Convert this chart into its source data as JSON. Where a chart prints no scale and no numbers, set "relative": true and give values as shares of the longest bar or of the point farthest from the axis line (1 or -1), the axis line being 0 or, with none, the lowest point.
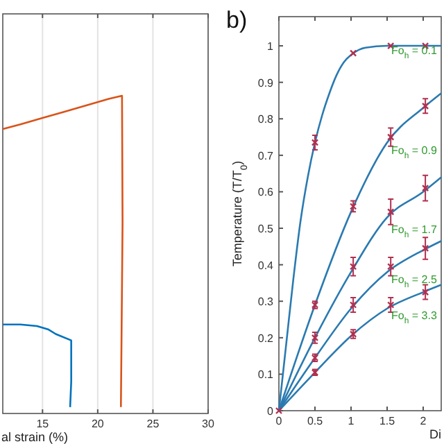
{
  "chart_data": [
    {
      "type": "line",
      "relative": true,
      "xlabel": "al strain (%)",
      "xlim": [
        11.4,
        30
      ],
      "xticks": [
        15,
        20,
        25,
        30
      ],
      "grid": "x",
      "series": [
        {
          "color": "#d95319",
          "x": [
            11.4,
            13,
            15,
            17,
            19,
            21,
            22.2,
            22.25,
            22.1
          ],
          "values": [
            0.895,
            0.91,
            0.93,
            0.95,
            0.97,
            0.99,
            1.0,
            0.6,
            0.02
          ]
        },
        {
          "color": "#0072bd",
          "x": [
            11.4,
            13,
            14.5,
            15.5,
            16.2,
            17.6,
            17.6,
            17.5
          ],
          "values": [
            0.28,
            0.28,
            0.275,
            0.265,
            0.25,
            0.23,
            0.1,
            0.02
          ]
        }
      ]
    },
    {
      "type": "line",
      "title": "b)",
      "xlabel": "Di",
      "ylabel": "Temperature (T/T$_{0}$)",
      "xlim": [
        0,
        2.25
      ],
      "ylim": [
        0,
        1.08
      ],
      "xticks": [
        0,
        0.5,
        1,
        1.5,
        2
      ],
      "yticks": [
        0,
        0.1,
        0.2,
        0.3,
        0.4,
        0.5,
        0.6,
        0.7,
        0.8,
        0.9,
        1
      ],
      "series": [
        {
          "color": "#2a7ab0",
          "x": [
            0,
            0.1,
            0.2,
            0.3,
            0.4,
            0.5,
            0.6,
            0.7,
            0.8,
            0.9,
            1.0,
            1.2,
            1.5,
            2.25
          ],
          "values": [
            0,
            0.18,
            0.36,
            0.52,
            0.64,
            0.735,
            0.81,
            0.87,
            0.92,
            0.955,
            0.975,
            0.995,
            1.0,
            1.0
          ]
        },
        {
          "color": "#2a7ab0",
          "x": [
            0,
            0.5,
            1,
            1.5,
            2,
            2.25
          ],
          "values": [
            0,
            0.29,
            0.545,
            0.735,
            0.83,
            0.87
          ]
        },
        {
          "color": "#2a7ab0",
          "x": [
            0,
            0.5,
            1,
            1.5,
            2,
            2.25
          ],
          "values": [
            0,
            0.2,
            0.38,
            0.53,
            0.6,
            0.64
          ]
        },
        {
          "color": "#2a7ab0",
          "x": [
            0,
            0.5,
            1,
            1.5,
            2,
            2.25
          ],
          "values": [
            0,
            0.145,
            0.28,
            0.38,
            0.44,
            0.465
          ]
        },
        {
          "color": "#2a7ab0",
          "x": [
            0,
            0.5,
            1,
            1.5,
            2,
            2.25
          ],
          "values": [
            0,
            0.105,
            0.205,
            0.28,
            0.325,
            0.345
          ]
        },
        {
          "type": "scatter",
          "marker": "cross",
          "color": "#b03050",
          "x": [
            0,
            0.5,
            1.03,
            1.55,
            2.03,
            0.5,
            1.03,
            1.55,
            2.03,
            0.5,
            1.03,
            1.55,
            2.03,
            0.5,
            1.03,
            1.55,
            2.03,
            0.5,
            1.03,
            1.55,
            2.03
          ],
          "values": [
            0,
            0.735,
            0.98,
            1.0,
            1.0,
            0.29,
            0.56,
            0.75,
            0.835,
            0.2,
            0.395,
            0.545,
            0.61,
            0.145,
            0.29,
            0.395,
            0.445,
            0.105,
            0.21,
            0.29,
            0.325
          ],
          "errors": [
            null,
            0.02,
            null,
            null,
            null,
            0.01,
            0.015,
            0.025,
            0.02,
            0.015,
            0.025,
            0.035,
            0.035,
            0.01,
            0.02,
            0.025,
            0.03,
            0.008,
            0.012,
            0.02,
            0.02
          ]
        }
      ],
      "annotations": [
        "Fo$_{h}$ = 0.1",
        "Fo$_{h}$ = 0.9",
        "Fo$_{h}$ = 1.7",
        "Fo$_{h}$ = 2.5",
        "Fo$_{h}$ = 3.3"
      ]
    }
  ]
}
